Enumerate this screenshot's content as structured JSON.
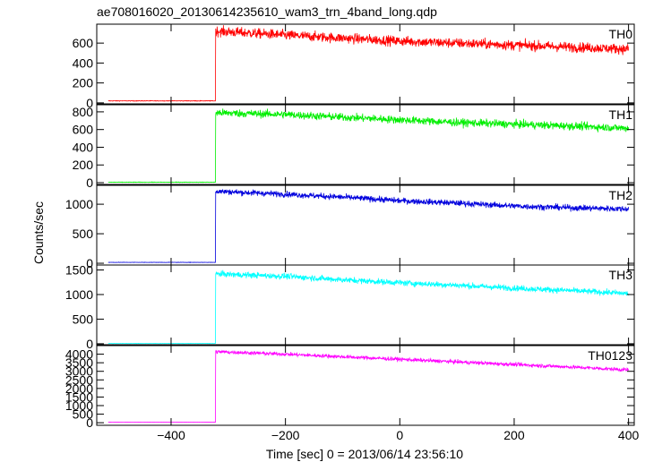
{
  "title": "ae708016020_20130614235610_wam3_trn_4band_long.qdp",
  "ylabel": "Counts/sec",
  "xlabel": "Time [sec] 0 = 2013/06/14 23:56:10",
  "chart_data": {
    "type": "line",
    "title": "ae708016020_20130614235610_wam3_trn_4band_long.qdp",
    "xlabel": "Time [sec] 0 = 2013/06/14 23:56:10",
    "ylabel": "Counts/sec",
    "xlim": [
      -530,
      410
    ],
    "x_ticks": [
      -400,
      -200,
      0,
      200,
      400
    ],
    "x_tick_labels": [
      "−400",
      "−200",
      "0",
      "200",
      "400"
    ],
    "grid": false,
    "panels": [
      {
        "name": "TH0",
        "color": "#ff0000",
        "ylim": [
          -10,
          790
        ],
        "y_ticks": [
          0,
          200,
          400,
          600
        ],
        "y_tick_labels": [
          "0",
          "200",
          "400",
          "600"
        ],
        "x_start": -510,
        "x_end": 400,
        "step_time": -322,
        "pre_level": 20,
        "post_points": [
          [
            -322,
            720
          ],
          [
            -200,
            680
          ],
          [
            -100,
            650
          ],
          [
            0,
            620
          ],
          [
            100,
            600
          ],
          [
            200,
            580
          ],
          [
            300,
            560
          ],
          [
            400,
            540
          ]
        ],
        "noise": 25
      },
      {
        "name": "TH1",
        "color": "#00ee00",
        "ylim": [
          -20,
          880
        ],
        "y_ticks": [
          0,
          200,
          400,
          600,
          800
        ],
        "y_tick_labels": [
          "0",
          "200",
          "400",
          "600",
          "800"
        ],
        "x_start": -510,
        "x_end": 400,
        "step_time": -322,
        "pre_level": 5,
        "post_points": [
          [
            -322,
            790
          ],
          [
            -200,
            770
          ],
          [
            -100,
            740
          ],
          [
            0,
            710
          ],
          [
            100,
            680
          ],
          [
            200,
            660
          ],
          [
            300,
            640
          ],
          [
            400,
            615
          ]
        ],
        "noise": 22
      },
      {
        "name": "TH2",
        "color": "#0000dd",
        "ylim": [
          -30,
          1320
        ],
        "y_ticks": [
          0,
          500,
          1000
        ],
        "y_tick_labels": [
          "0",
          "500",
          "1000"
        ],
        "x_start": -510,
        "x_end": 400,
        "step_time": -322,
        "pre_level": 15,
        "post_points": [
          [
            -322,
            1220
          ],
          [
            -200,
            1170
          ],
          [
            -100,
            1120
          ],
          [
            0,
            1060
          ],
          [
            100,
            1020
          ],
          [
            200,
            970
          ],
          [
            300,
            940
          ],
          [
            400,
            920
          ]
        ],
        "noise": 25
      },
      {
        "name": "TH3",
        "color": "#00ffff",
        "ylim": [
          -20,
          1600
        ],
        "y_ticks": [
          0,
          500,
          1000,
          1500
        ],
        "y_tick_labels": [
          "0",
          "500",
          "1000",
          "1500"
        ],
        "x_start": -510,
        "x_end": 400,
        "step_time": -322,
        "pre_level": 5,
        "post_points": [
          [
            -322,
            1420
          ],
          [
            -200,
            1370
          ],
          [
            -100,
            1300
          ],
          [
            0,
            1240
          ],
          [
            100,
            1190
          ],
          [
            200,
            1130
          ],
          [
            300,
            1080
          ],
          [
            400,
            1020
          ]
        ],
        "noise": 30
      },
      {
        "name": "TH0123",
        "color": "#ff00ff",
        "ylim": [
          -150,
          4500
        ],
        "y_ticks": [
          0,
          500,
          1000,
          1500,
          2000,
          2500,
          3000,
          3500,
          4000
        ],
        "y_tick_labels": [
          "0",
          "500",
          "1000",
          "1500",
          "2000",
          "2500",
          "3000",
          "3500",
          "4000"
        ],
        "x_start": -510,
        "x_end": 400,
        "step_time": -322,
        "pre_level": 30,
        "post_points": [
          [
            -322,
            4150
          ],
          [
            -200,
            4000
          ],
          [
            -100,
            3850
          ],
          [
            0,
            3700
          ],
          [
            100,
            3550
          ],
          [
            200,
            3400
          ],
          [
            300,
            3250
          ],
          [
            400,
            3080
          ]
        ],
        "noise": 55
      }
    ]
  }
}
